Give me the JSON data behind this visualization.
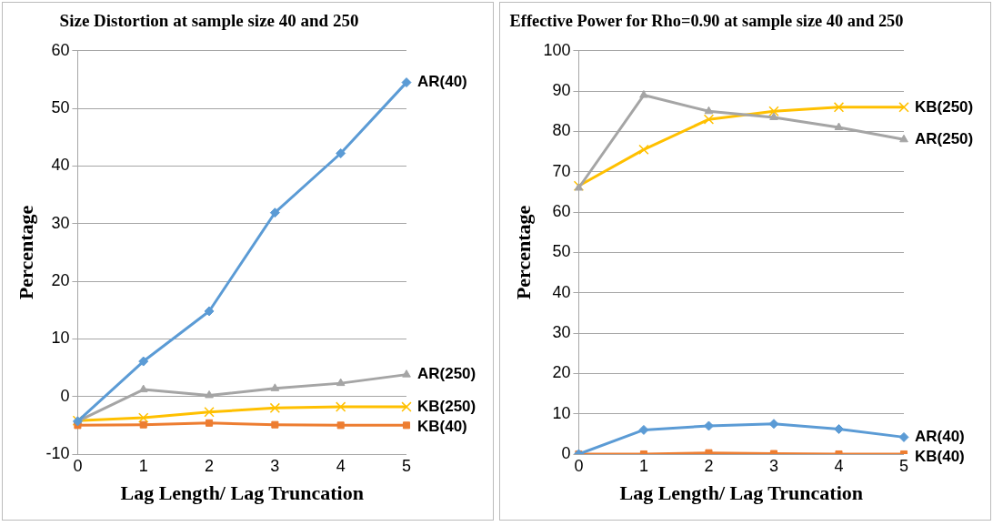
{
  "chart_data": [
    {
      "type": "line",
      "title": "Size Distortion at sample size 40 and 250",
      "xlabel": "Lag Length/ Lag Truncation",
      "ylabel": "Percentage",
      "categories": [
        "0",
        "1",
        "2",
        "3",
        "4",
        "5"
      ],
      "ylim": [
        -10,
        60
      ],
      "yticks": [
        -10,
        0,
        10,
        20,
        30,
        40,
        50,
        60
      ],
      "grid": "y",
      "legend": false,
      "series": [
        {
          "name": "AR(40)",
          "color": "#5b9bd5",
          "marker": "diamond",
          "values": [
            -4.3,
            6.1,
            14.8,
            31.9,
            42.2,
            54.5
          ]
        },
        {
          "name": "KB(40)",
          "color": "#ed7d31",
          "marker": "square",
          "values": [
            -5.0,
            -4.9,
            -4.6,
            -4.9,
            -5.0,
            -5.0
          ]
        },
        {
          "name": "AR(250)",
          "color": "#a5a5a5",
          "marker": "triangle",
          "values": [
            -4.3,
            1.2,
            0.2,
            1.4,
            2.3,
            3.8
          ]
        },
        {
          "name": "KB(250)",
          "color": "#ffc000",
          "marker": "cross",
          "values": [
            -4.2,
            -3.7,
            -2.7,
            -2.0,
            -1.8,
            -1.8
          ]
        }
      ]
    },
    {
      "type": "line",
      "title": "Effective Power for Rho=0.90 at sample size 40 and 250",
      "xlabel": "Lag Length/ Lag Truncation",
      "ylabel": "Percentage",
      "categories": [
        "0",
        "1",
        "2",
        "3",
        "4",
        "5"
      ],
      "ylim": [
        0,
        100
      ],
      "yticks": [
        0,
        10,
        20,
        30,
        40,
        50,
        60,
        70,
        80,
        90,
        100
      ],
      "grid": "y",
      "legend": false,
      "series": [
        {
          "name": "AR(40)",
          "color": "#5b9bd5",
          "marker": "diamond",
          "values": [
            0,
            6,
            7,
            7.5,
            6.2,
            4.2
          ]
        },
        {
          "name": "KB(40)",
          "color": "#ed7d31",
          "marker": "square",
          "values": [
            0,
            0,
            0.3,
            0.1,
            0,
            0
          ]
        },
        {
          "name": "AR(250)",
          "color": "#a5a5a5",
          "marker": "triangle",
          "values": [
            66,
            89,
            85,
            83.5,
            81,
            78
          ]
        },
        {
          "name": "KB(250)",
          "color": "#ffc000",
          "marker": "cross",
          "values": [
            66.5,
            75.5,
            83,
            85,
            86,
            86
          ]
        }
      ]
    }
  ]
}
